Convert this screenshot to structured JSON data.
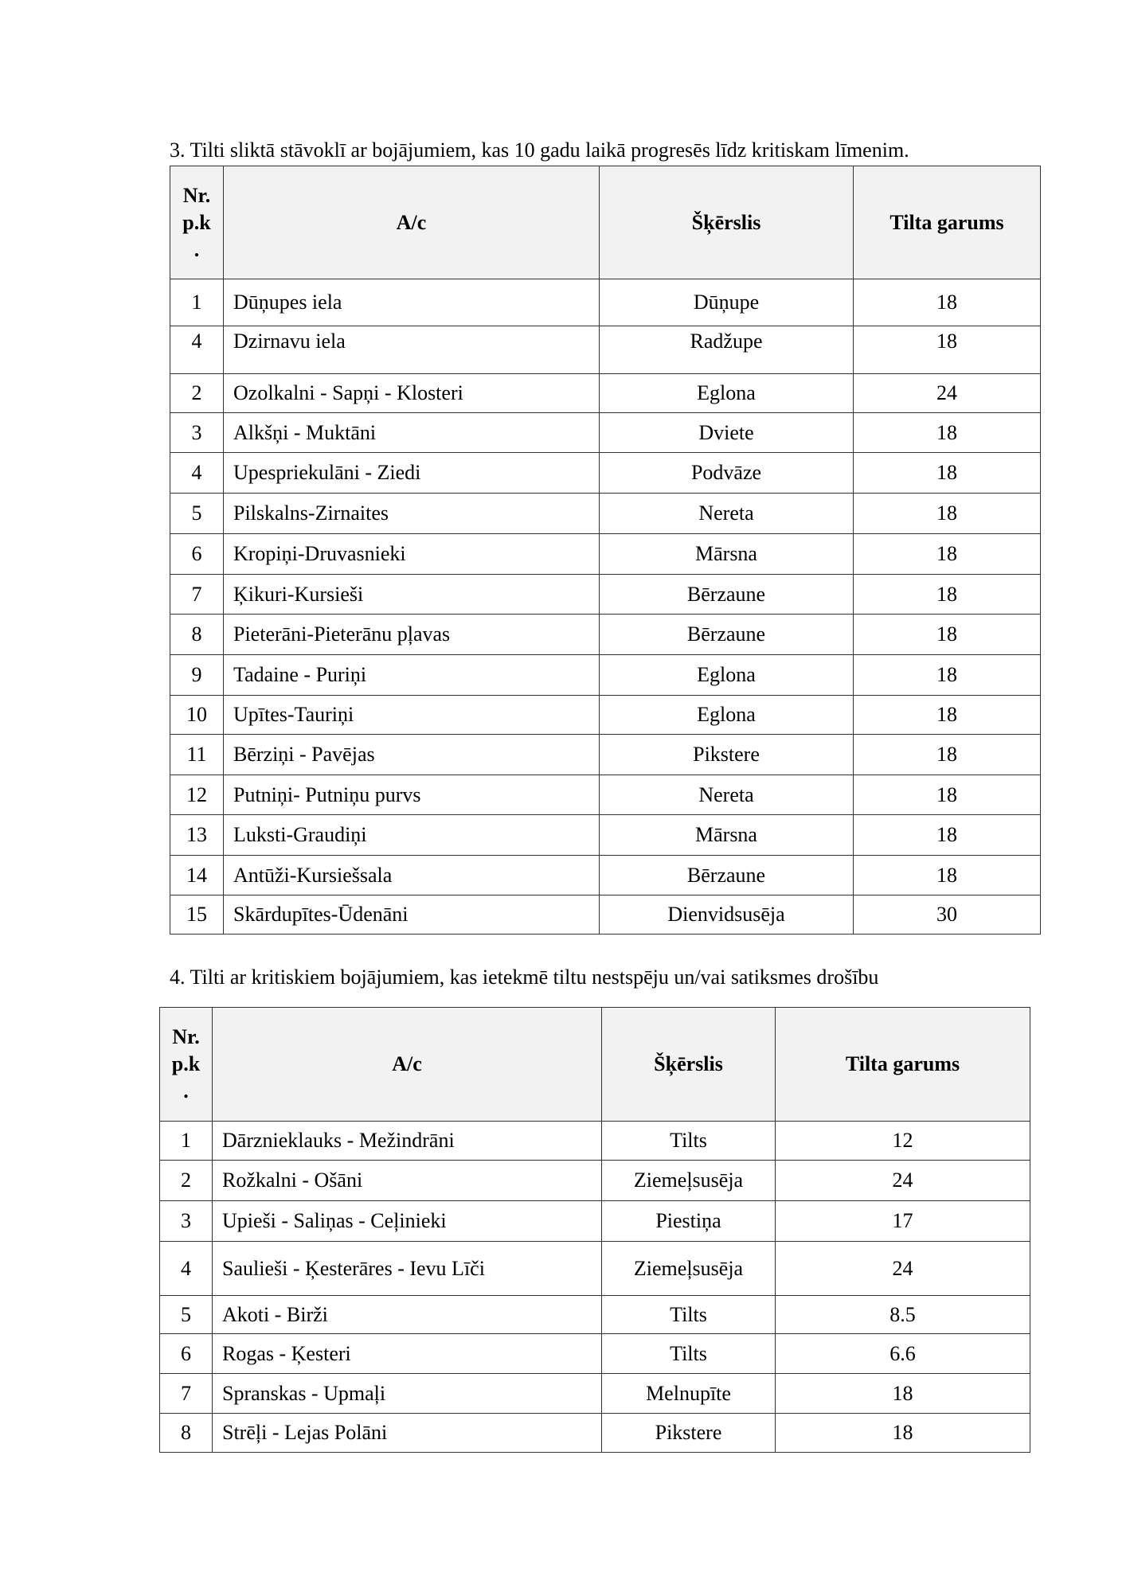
{
  "section3": {
    "title": "3. Tilti sliktā stāvoklī ar bojājumiem, kas 10 gadu laikā progresēs līdz kritiskam līmenim.",
    "headers": {
      "nr": "Nr. p.k .",
      "nr_lines": [
        "Nr.",
        "p.k",
        "."
      ],
      "ac": "A/c",
      "skerslis": "Šķērslis",
      "garums": "Tilta garums"
    },
    "rows": [
      {
        "nr": "1",
        "ac": "Dūņupes iela",
        "skerslis": "Dūņupe",
        "garums": "18"
      },
      {
        "nr": "4",
        "ac": "Dzirnavu iela",
        "skerslis": "Radžupe",
        "garums": "18"
      },
      {
        "nr": "2",
        "ac": "Ozolkalni - Sapņi - Klosteri",
        "skerslis": "Eglona",
        "garums": "24"
      },
      {
        "nr": "3",
        "ac": "Alkšņi - Muktāni",
        "skerslis": "Dviete",
        "garums": "18"
      },
      {
        "nr": "4",
        "ac": "Upespriekulāni - Ziedi",
        "skerslis": "Podvāze",
        "garums": "18"
      },
      {
        "nr": "5",
        "ac": "Pilskalns-Zirnaites",
        "skerslis": "Nereta",
        "garums": "18"
      },
      {
        "nr": "6",
        "ac": "Kropiņi-Druvasnieki",
        "skerslis": "Mārsna",
        "garums": "18"
      },
      {
        "nr": "7",
        "ac": "Ķikuri-Kursieši",
        "skerslis": "Bērzaune",
        "garums": "18"
      },
      {
        "nr": "8",
        "ac": "Pieterāni-Pieterānu pļavas",
        "skerslis": "Bērzaune",
        "garums": "18"
      },
      {
        "nr": "9",
        "ac": "Tadaine - Puriņi",
        "skerslis": "Eglona",
        "garums": "18"
      },
      {
        "nr": "10",
        "ac": "Upītes-Tauriņi",
        "skerslis": "Eglona",
        "garums": "18"
      },
      {
        "nr": "11",
        "ac": "Bērziņi - Pavējas",
        "skerslis": "Pikstere",
        "garums": "18"
      },
      {
        "nr": "12",
        "ac": "Putniņi- Putniņu purvs",
        "skerslis": "Nereta",
        "garums": "18"
      },
      {
        "nr": "13",
        "ac": "Luksti-Graudiņi",
        "skerslis": "Mārsna",
        "garums": "18"
      },
      {
        "nr": "14",
        "ac": "Antūži-Kursiešsala",
        "skerslis": "Bērzaune",
        "garums": "18"
      },
      {
        "nr": "15",
        "ac": "Skārdupītes-Ūdenāni",
        "skerslis": "Dienvidsusēja",
        "garums": "30"
      }
    ]
  },
  "section4": {
    "title": "4. Tilti ar kritiskiem bojājumiem, kas ietekmē tiltu nestspēju un/vai satiksmes drošību",
    "headers": {
      "nr": "Nr. p.k .",
      "nr_lines": [
        "Nr.",
        "p.k",
        "."
      ],
      "ac": "A/c",
      "skerslis": "Šķērslis",
      "garums": "Tilta garums"
    },
    "rows": [
      {
        "nr": "1",
        "ac": " Dārznieklauks - Mežindrāni",
        "skerslis": "Tilts",
        "garums": "12"
      },
      {
        "nr": "2",
        "ac": "Rožkalni - Ošāni",
        "skerslis": "Ziemeļsusēja",
        "garums": "24"
      },
      {
        "nr": "3",
        "ac": "Upieši - Saliņas - Ceļinieki",
        "skerslis": "Piestiņa",
        "garums": "17"
      },
      {
        "nr": "4",
        "ac": "Saulieši - Ķesterāres - Ievu Līči",
        "skerslis": "Ziemeļsusēja",
        "garums": "24"
      },
      {
        "nr": "5",
        "ac": " Akoti - Birži",
        "skerslis": "Tilts",
        "garums": "8.5"
      },
      {
        "nr": "6",
        "ac": " Rogas - Ķesteri",
        "skerslis": "Tilts",
        "garums": "6.6"
      },
      {
        "nr": "7",
        "ac": " Spranskas - Upmaļi",
        "skerslis": "Melnupīte",
        "garums": "18"
      },
      {
        "nr": "8",
        "ac": " Strēļi - Lejas Polāni",
        "skerslis": "Pikstere",
        "garums": "18"
      }
    ]
  }
}
